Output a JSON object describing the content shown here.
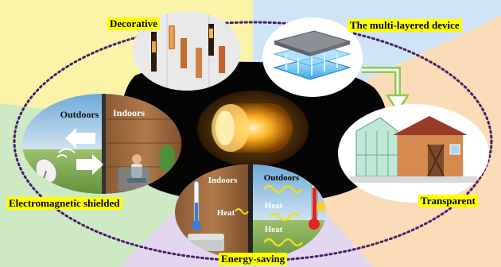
{
  "labels": {
    "decorative": "Decorative",
    "multilayer": "The multi-layered device",
    "transparent": "Transparent",
    "energy_saving": "Energy-saving",
    "em_shielded": "Electromagnetic shielded"
  },
  "em_panel": {
    "outdoors": "Outdoors",
    "indoors": "Indoors"
  },
  "energy_panel": {
    "indoors": "Indoors",
    "outdoors": "Outdoors",
    "heat_indoor": "Heat",
    "heat_outdoor_1": "Heat",
    "heat_outdoor_2": "Heat"
  },
  "colors": {
    "sector_yellow": "#fbf3a8",
    "sector_blue": "#cfe5f7",
    "sector_orange": "#fbdcb8",
    "sector_purple": "#e3d6f0",
    "sector_green": "#cdeac5",
    "dotted_ellipse": "#4a1a6b",
    "arrow_green": "#8cc84b",
    "glow": "#ffb020"
  }
}
